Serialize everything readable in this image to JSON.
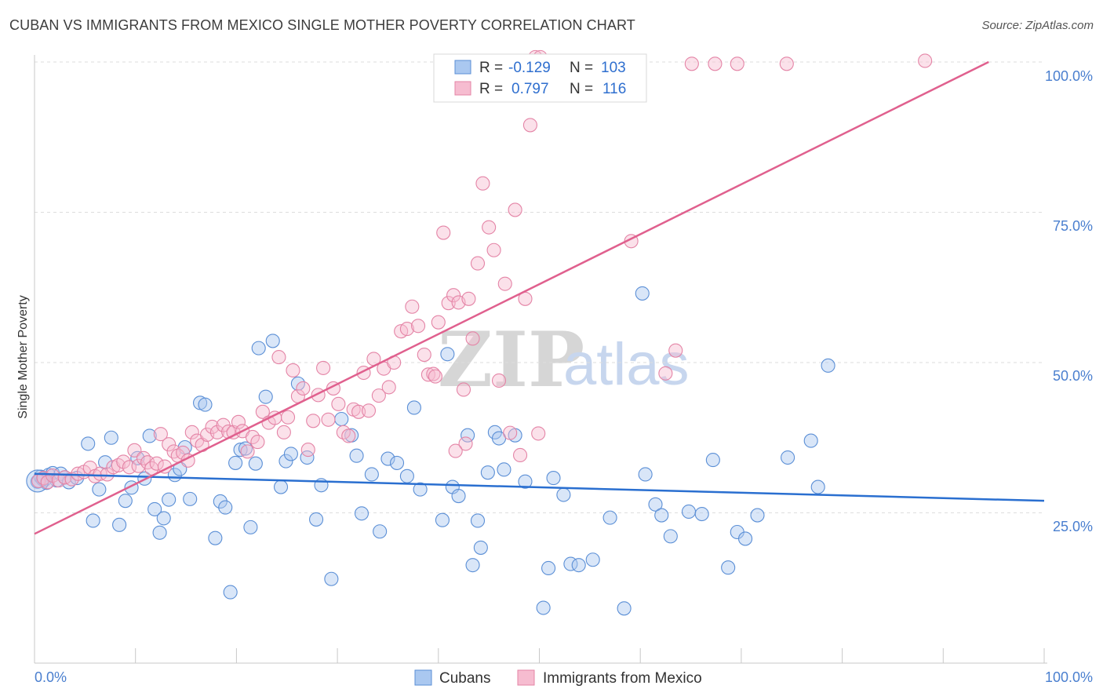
{
  "header": {
    "title": "CUBAN VS IMMIGRANTS FROM MEXICO SINGLE MOTHER POVERTY CORRELATION CHART",
    "source": "Source: ZipAtlas.com"
  },
  "watermark": {
    "zip": "ZIP",
    "atlas": "atlas"
  },
  "legend_top": {
    "rows": [
      {
        "r_label": "R =",
        "r_value": "-0.129",
        "n_label": "N =",
        "n_value": "103"
      },
      {
        "r_label": "R =",
        "r_value": "0.797",
        "n_label": "N =",
        "n_value": "116"
      }
    ]
  },
  "legend_bottom": {
    "items": [
      "Cubans",
      "Immigrants from Mexico"
    ]
  },
  "colors": {
    "blue_fill": "#aac8f0",
    "blue_stroke": "#5b8fd6",
    "blue_line": "#2a6fd0",
    "pink_fill": "#f6bcd0",
    "pink_stroke": "#e484a6",
    "pink_line": "#e0608e",
    "axis_text": "#4a7fcf",
    "grid": "#dddddd"
  },
  "chart_data": {
    "type": "scatter",
    "title": "CUBAN VS IMMIGRANTS FROM MEXICO SINGLE MOTHER POVERTY CORRELATION CHART",
    "xlabel": "",
    "ylabel": "Single Mother Poverty",
    "xlim": [
      0,
      100
    ],
    "ylim": [
      0,
      100
    ],
    "x_ticks": [
      "0.0%",
      "100.0%"
    ],
    "y_ticks": [
      "25.0%",
      "50.0%",
      "75.0%",
      "100.0%"
    ],
    "grid": true,
    "legend_position": "top-center",
    "series": [
      {
        "name": "Cubans",
        "r": -0.129,
        "n": 103,
        "trend": {
          "x": [
            0,
            100
          ],
          "y": [
            31.5,
            27.0
          ]
        },
        "points": [
          [
            0.3,
            30.2
          ],
          [
            0.6,
            31.0
          ],
          [
            1.0,
            30.5
          ],
          [
            1.4,
            31.3
          ],
          [
            1.8,
            31.6
          ],
          [
            2.2,
            30.4
          ],
          [
            2.6,
            31.5
          ],
          [
            3.0,
            30.9
          ],
          [
            3.4,
            30.1
          ],
          [
            4.2,
            30.8
          ],
          [
            5.3,
            36.5
          ],
          [
            5.8,
            23.7
          ],
          [
            6.4,
            28.9
          ],
          [
            7.0,
            33.4
          ],
          [
            7.6,
            37.5
          ],
          [
            8.4,
            23.0
          ],
          [
            9.0,
            27.0
          ],
          [
            9.6,
            29.2
          ],
          [
            10.2,
            34.1
          ],
          [
            10.9,
            30.7
          ],
          [
            11.4,
            37.8
          ],
          [
            11.9,
            25.6
          ],
          [
            12.4,
            21.7
          ],
          [
            12.8,
            24.1
          ],
          [
            13.3,
            27.2
          ],
          [
            13.9,
            31.3
          ],
          [
            14.4,
            32.3
          ],
          [
            14.9,
            35.9
          ],
          [
            15.4,
            27.3
          ],
          [
            16.4,
            43.3
          ],
          [
            16.9,
            43.0
          ],
          [
            17.9,
            20.8
          ],
          [
            18.4,
            26.9
          ],
          [
            18.9,
            25.9
          ],
          [
            19.4,
            11.8
          ],
          [
            19.9,
            33.3
          ],
          [
            20.4,
            35.5
          ],
          [
            20.9,
            35.7
          ],
          [
            21.4,
            22.6
          ],
          [
            21.9,
            33.2
          ],
          [
            22.2,
            52.4
          ],
          [
            22.9,
            44.3
          ],
          [
            23.6,
            53.6
          ],
          [
            24.4,
            29.3
          ],
          [
            24.9,
            33.6
          ],
          [
            25.4,
            34.8
          ],
          [
            26.1,
            46.5
          ],
          [
            27.0,
            34.2
          ],
          [
            27.9,
            23.9
          ],
          [
            28.4,
            29.6
          ],
          [
            29.4,
            14.0
          ],
          [
            30.4,
            40.6
          ],
          [
            31.4,
            37.9
          ],
          [
            31.9,
            34.5
          ],
          [
            32.4,
            24.9
          ],
          [
            33.4,
            31.4
          ],
          [
            34.2,
            21.9
          ],
          [
            35.0,
            34.0
          ],
          [
            35.9,
            33.3
          ],
          [
            36.9,
            31.1
          ],
          [
            37.6,
            42.5
          ],
          [
            38.2,
            28.9
          ],
          [
            40.4,
            23.8
          ],
          [
            40.9,
            51.4
          ],
          [
            41.4,
            29.3
          ],
          [
            42.0,
            27.8
          ],
          [
            42.9,
            37.9
          ],
          [
            43.4,
            16.3
          ],
          [
            43.9,
            23.7
          ],
          [
            44.2,
            19.2
          ],
          [
            44.9,
            31.7
          ],
          [
            45.6,
            38.4
          ],
          [
            46.0,
            37.4
          ],
          [
            46.5,
            32.2
          ],
          [
            47.6,
            37.9
          ],
          [
            48.6,
            30.2
          ],
          [
            50.4,
            9.2
          ],
          [
            50.9,
            15.8
          ],
          [
            51.4,
            30.8
          ],
          [
            52.4,
            28.0
          ],
          [
            53.1,
            16.5
          ],
          [
            53.9,
            16.3
          ],
          [
            55.3,
            17.2
          ],
          [
            57.0,
            24.2
          ],
          [
            58.4,
            9.1
          ],
          [
            60.2,
            61.5
          ],
          [
            60.5,
            31.4
          ],
          [
            61.5,
            26.4
          ],
          [
            62.1,
            24.6
          ],
          [
            63.0,
            21.1
          ],
          [
            64.8,
            25.2
          ],
          [
            66.1,
            24.8
          ],
          [
            67.2,
            33.8
          ],
          [
            68.7,
            15.9
          ],
          [
            69.6,
            21.8
          ],
          [
            70.4,
            20.7
          ],
          [
            71.6,
            24.6
          ],
          [
            74.6,
            34.2
          ],
          [
            76.9,
            37.0
          ],
          [
            77.6,
            29.3
          ],
          [
            78.6,
            49.5
          ],
          [
            1.2,
            30.0
          ],
          [
            0.8,
            30.6
          ]
        ]
      },
      {
        "name": "Immigrants from Mexico",
        "r": 0.797,
        "n": 116,
        "trend": {
          "x": [
            0,
            94.5
          ],
          "y": [
            21.5,
            100.0
          ]
        },
        "points": [
          [
            0.4,
            30.3
          ],
          [
            0.9,
            30.8
          ],
          [
            1.3,
            30.1
          ],
          [
            1.8,
            31.2
          ],
          [
            2.4,
            30.4
          ],
          [
            3.0,
            30.9
          ],
          [
            3.7,
            30.6
          ],
          [
            4.3,
            31.5
          ],
          [
            4.9,
            31.8
          ],
          [
            5.5,
            32.5
          ],
          [
            6.0,
            31.1
          ],
          [
            6.5,
            31.5
          ],
          [
            7.2,
            31.4
          ],
          [
            7.8,
            32.6
          ],
          [
            8.3,
            32.9
          ],
          [
            8.8,
            33.5
          ],
          [
            9.4,
            32.6
          ],
          [
            9.9,
            35.4
          ],
          [
            10.3,
            32.8
          ],
          [
            10.8,
            34.1
          ],
          [
            11.2,
            33.4
          ],
          [
            11.6,
            32.4
          ],
          [
            12.1,
            33.2
          ],
          [
            12.5,
            38.1
          ],
          [
            12.9,
            32.7
          ],
          [
            13.3,
            36.4
          ],
          [
            13.8,
            35.2
          ],
          [
            14.2,
            34.5
          ],
          [
            14.7,
            35.0
          ],
          [
            15.2,
            33.7
          ],
          [
            15.6,
            38.4
          ],
          [
            16.1,
            37.0
          ],
          [
            16.6,
            36.3
          ],
          [
            17.1,
            38.0
          ],
          [
            17.6,
            39.3
          ],
          [
            18.1,
            38.4
          ],
          [
            18.7,
            39.6
          ],
          [
            19.2,
            38.5
          ],
          [
            19.7,
            38.4
          ],
          [
            20.2,
            40.1
          ],
          [
            20.6,
            38.6
          ],
          [
            21.1,
            35.2
          ],
          [
            21.6,
            37.6
          ],
          [
            22.1,
            36.8
          ],
          [
            22.6,
            41.8
          ],
          [
            23.2,
            40.0
          ],
          [
            23.8,
            40.8
          ],
          [
            24.2,
            50.9
          ],
          [
            24.7,
            38.4
          ],
          [
            25.1,
            40.9
          ],
          [
            25.6,
            48.7
          ],
          [
            26.1,
            44.4
          ],
          [
            26.6,
            45.7
          ],
          [
            27.1,
            35.5
          ],
          [
            27.6,
            40.3
          ],
          [
            28.1,
            44.6
          ],
          [
            28.6,
            49.1
          ],
          [
            29.1,
            40.5
          ],
          [
            29.6,
            45.7
          ],
          [
            30.1,
            43.1
          ],
          [
            30.6,
            38.4
          ],
          [
            31.1,
            37.8
          ],
          [
            31.6,
            42.2
          ],
          [
            32.1,
            41.8
          ],
          [
            32.6,
            48.3
          ],
          [
            33.1,
            42.0
          ],
          [
            33.6,
            50.6
          ],
          [
            34.1,
            44.5
          ],
          [
            34.6,
            49.0
          ],
          [
            35.1,
            45.9
          ],
          [
            35.6,
            50.0
          ],
          [
            36.3,
            55.2
          ],
          [
            36.9,
            55.6
          ],
          [
            37.4,
            59.3
          ],
          [
            38.0,
            56.1
          ],
          [
            38.6,
            51.3
          ],
          [
            39.0,
            48.0
          ],
          [
            39.5,
            48.1
          ],
          [
            40.0,
            56.7
          ],
          [
            40.5,
            71.6
          ],
          [
            41.0,
            59.9
          ],
          [
            41.5,
            61.2
          ],
          [
            42.0,
            60.0
          ],
          [
            42.5,
            45.5
          ],
          [
            43.0,
            60.6
          ],
          [
            43.4,
            54.0
          ],
          [
            43.9,
            66.5
          ],
          [
            44.4,
            79.8
          ],
          [
            45.0,
            72.5
          ],
          [
            45.5,
            68.7
          ],
          [
            46.0,
            47.0
          ],
          [
            46.6,
            63.1
          ],
          [
            47.1,
            38.3
          ],
          [
            47.6,
            75.4
          ],
          [
            48.1,
            34.6
          ],
          [
            48.6,
            60.6
          ],
          [
            49.1,
            89.5
          ],
          [
            49.6,
            102.0
          ],
          [
            50.1,
            103.0
          ],
          [
            50.8,
            98.5
          ],
          [
            53.6,
            98.5
          ],
          [
            56.7,
            99.7
          ],
          [
            59.1,
            70.2
          ],
          [
            62.5,
            48.2
          ],
          [
            63.5,
            52.0
          ],
          [
            65.1,
            99.7
          ],
          [
            67.4,
            99.7
          ],
          [
            69.6,
            99.7
          ],
          [
            74.5,
            99.7
          ],
          [
            88.2,
            100.2
          ],
          [
            39.7,
            47.7
          ],
          [
            42.7,
            36.5
          ],
          [
            58.1,
            100.1
          ],
          [
            46.5,
            100.1
          ],
          [
            49.9,
            38.2
          ],
          [
            41.7,
            35.3
          ]
        ]
      }
    ]
  }
}
